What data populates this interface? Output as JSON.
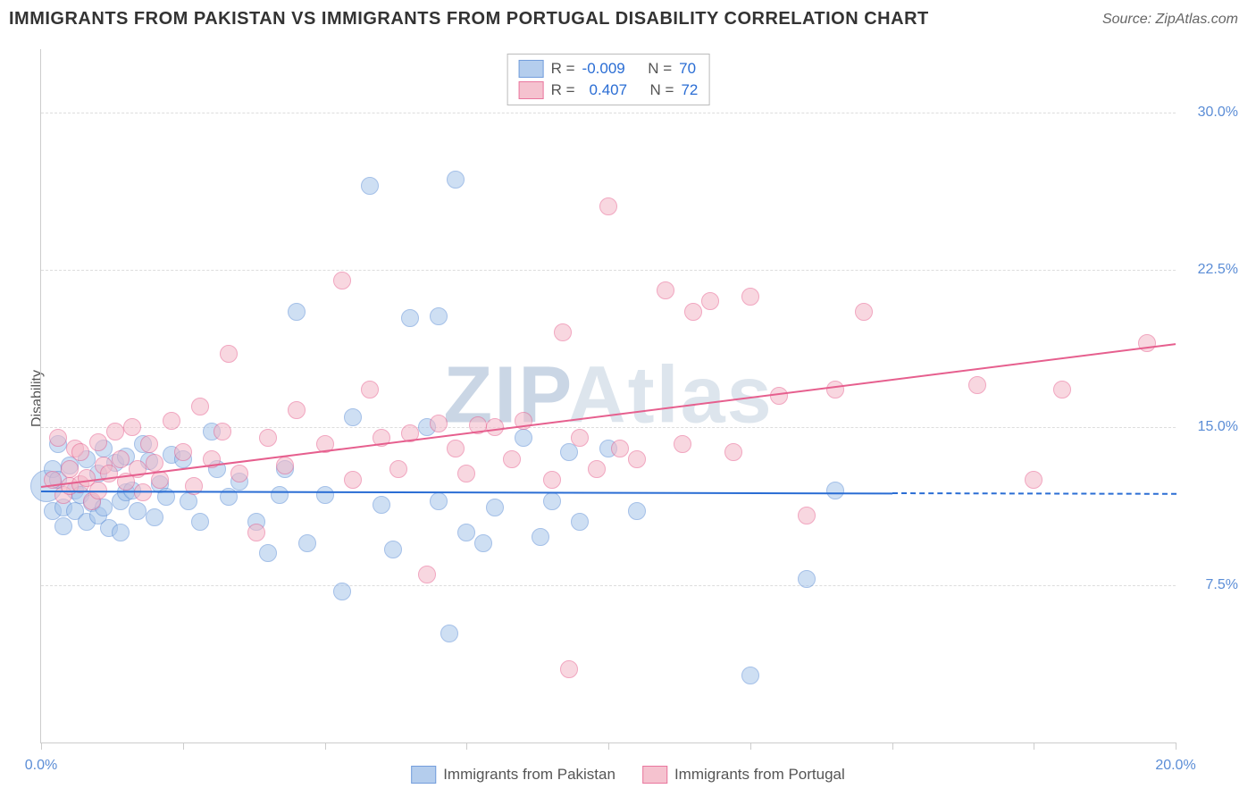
{
  "header": {
    "title": "IMMIGRANTS FROM PAKISTAN VS IMMIGRANTS FROM PORTUGAL DISABILITY CORRELATION CHART",
    "source_label": "Source:",
    "source_value": "ZipAtlas.com"
  },
  "chart": {
    "type": "scatter",
    "y_label": "Disability",
    "background_color": "#ffffff",
    "grid_color": "#dddddd",
    "axis_color": "#cccccc",
    "tick_label_color": "#5b8dd6",
    "xlim": [
      0,
      20
    ],
    "ylim": [
      0,
      33
    ],
    "y_ticks": [
      7.5,
      15.0,
      22.5,
      30.0
    ],
    "y_tick_labels": [
      "7.5%",
      "15.0%",
      "22.5%",
      "30.0%"
    ],
    "x_ticks": [
      0,
      2.5,
      5,
      7.5,
      10,
      12.5,
      15,
      17.5,
      20
    ],
    "x_tick_labels": {
      "0": "0.0%",
      "20": "20.0%"
    },
    "watermark": "ZIPAtlas",
    "series": [
      {
        "name": "Immigrants from Pakistan",
        "color_fill": "#a7c5ea",
        "color_stroke": "#5b8dd6",
        "fill_opacity": 0.55,
        "marker_radius": 10,
        "R_label": "R =",
        "R": "-0.009",
        "N_label": "N =",
        "N": "70",
        "trend": {
          "x1": 0,
          "y1": 12.0,
          "x2": 15,
          "y2": 11.9,
          "color": "#2a6dd4",
          "dash_to_x": 20
        },
        "points": [
          [
            0.1,
            12.2,
            18
          ],
          [
            0.2,
            13.0
          ],
          [
            0.2,
            11.0
          ],
          [
            0.3,
            12.5
          ],
          [
            0.3,
            14.2
          ],
          [
            0.4,
            11.2
          ],
          [
            0.4,
            10.3
          ],
          [
            0.5,
            13.2
          ],
          [
            0.6,
            11.0
          ],
          [
            0.6,
            12.0
          ],
          [
            0.7,
            11.8
          ],
          [
            0.8,
            10.5
          ],
          [
            0.8,
            13.5
          ],
          [
            0.9,
            11.4
          ],
          [
            1.0,
            10.8
          ],
          [
            1.0,
            12.8
          ],
          [
            1.1,
            14.0
          ],
          [
            1.1,
            11.2
          ],
          [
            1.2,
            10.2
          ],
          [
            1.3,
            13.3
          ],
          [
            1.4,
            11.5
          ],
          [
            1.4,
            10.0
          ],
          [
            1.5,
            13.6
          ],
          [
            1.5,
            11.9
          ],
          [
            1.6,
            12.0
          ],
          [
            1.7,
            11.0
          ],
          [
            1.8,
            14.2
          ],
          [
            1.9,
            13.4
          ],
          [
            2.0,
            10.7
          ],
          [
            2.1,
            12.3
          ],
          [
            2.2,
            11.7
          ],
          [
            2.3,
            13.7
          ],
          [
            2.5,
            13.5
          ],
          [
            2.6,
            11.5
          ],
          [
            2.8,
            10.5
          ],
          [
            3.0,
            14.8
          ],
          [
            3.1,
            13.0
          ],
          [
            3.3,
            11.7
          ],
          [
            3.5,
            12.4
          ],
          [
            3.8,
            10.5
          ],
          [
            4.0,
            9.0
          ],
          [
            4.2,
            11.8
          ],
          [
            4.3,
            13.0
          ],
          [
            4.5,
            20.5
          ],
          [
            4.7,
            9.5
          ],
          [
            5.0,
            11.8
          ],
          [
            5.3,
            7.2
          ],
          [
            5.5,
            15.5
          ],
          [
            5.8,
            26.5
          ],
          [
            6.0,
            11.3
          ],
          [
            6.2,
            9.2
          ],
          [
            6.5,
            20.2
          ],
          [
            6.8,
            15.0
          ],
          [
            7.0,
            20.3
          ],
          [
            7.0,
            11.5
          ],
          [
            7.2,
            5.2
          ],
          [
            7.3,
            26.8
          ],
          [
            7.5,
            10.0
          ],
          [
            7.8,
            9.5
          ],
          [
            8.0,
            11.2
          ],
          [
            8.5,
            14.5
          ],
          [
            8.8,
            9.8
          ],
          [
            9.0,
            11.5
          ],
          [
            9.3,
            13.8
          ],
          [
            9.5,
            10.5
          ],
          [
            10.0,
            14.0
          ],
          [
            10.5,
            11.0
          ],
          [
            12.5,
            3.2
          ],
          [
            13.5,
            7.8
          ],
          [
            14.0,
            12.0
          ]
        ]
      },
      {
        "name": "Immigrants from Portugal",
        "color_fill": "#f4b8c7",
        "color_stroke": "#e65f8e",
        "fill_opacity": 0.55,
        "marker_radius": 10,
        "R_label": "R =",
        "R": "0.407",
        "N_label": "N =",
        "N": "72",
        "trend": {
          "x1": 0,
          "y1": 12.2,
          "x2": 20,
          "y2": 19.0,
          "color": "#e65f8e"
        },
        "points": [
          [
            0.2,
            12.5
          ],
          [
            0.3,
            14.5
          ],
          [
            0.4,
            11.8
          ],
          [
            0.5,
            13.0
          ],
          [
            0.5,
            12.2
          ],
          [
            0.6,
            14.0
          ],
          [
            0.7,
            12.3
          ],
          [
            0.7,
            13.8
          ],
          [
            0.8,
            12.6
          ],
          [
            0.9,
            11.5
          ],
          [
            1.0,
            14.3
          ],
          [
            1.0,
            12.0
          ],
          [
            1.1,
            13.2
          ],
          [
            1.2,
            12.8
          ],
          [
            1.3,
            14.8
          ],
          [
            1.4,
            13.5
          ],
          [
            1.5,
            12.4
          ],
          [
            1.6,
            15.0
          ],
          [
            1.7,
            13.0
          ],
          [
            1.8,
            11.9
          ],
          [
            1.9,
            14.2
          ],
          [
            2.0,
            13.3
          ],
          [
            2.1,
            12.5
          ],
          [
            2.3,
            15.3
          ],
          [
            2.5,
            13.8
          ],
          [
            2.7,
            12.2
          ],
          [
            2.8,
            16.0
          ],
          [
            3.0,
            13.5
          ],
          [
            3.2,
            14.8
          ],
          [
            3.3,
            18.5
          ],
          [
            3.5,
            12.8
          ],
          [
            3.8,
            10.0
          ],
          [
            4.0,
            14.5
          ],
          [
            4.3,
            13.2
          ],
          [
            4.5,
            15.8
          ],
          [
            5.0,
            14.2
          ],
          [
            5.3,
            22.0
          ],
          [
            5.5,
            12.5
          ],
          [
            5.8,
            16.8
          ],
          [
            6.0,
            14.5
          ],
          [
            6.3,
            13.0
          ],
          [
            6.5,
            14.7
          ],
          [
            6.8,
            8.0
          ],
          [
            7.0,
            15.2
          ],
          [
            7.3,
            14.0
          ],
          [
            7.5,
            12.8
          ],
          [
            7.7,
            15.1
          ],
          [
            8.0,
            15.0
          ],
          [
            8.3,
            13.5
          ],
          [
            8.5,
            15.3
          ],
          [
            9.0,
            12.5
          ],
          [
            9.2,
            19.5
          ],
          [
            9.3,
            3.5
          ],
          [
            9.5,
            14.5
          ],
          [
            9.8,
            13.0
          ],
          [
            10.0,
            25.5
          ],
          [
            10.2,
            14.0
          ],
          [
            10.5,
            13.5
          ],
          [
            11.0,
            21.5
          ],
          [
            11.3,
            14.2
          ],
          [
            11.5,
            20.5
          ],
          [
            11.8,
            21.0
          ],
          [
            12.2,
            13.8
          ],
          [
            12.5,
            21.2
          ],
          [
            13.0,
            16.5
          ],
          [
            13.5,
            10.8
          ],
          [
            14.0,
            16.8
          ],
          [
            14.5,
            20.5
          ],
          [
            16.5,
            17.0
          ],
          [
            17.5,
            12.5
          ],
          [
            18.0,
            16.8
          ],
          [
            19.5,
            19.0
          ]
        ]
      }
    ]
  }
}
